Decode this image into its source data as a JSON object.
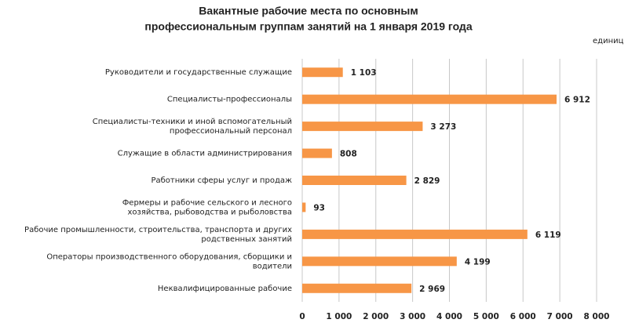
{
  "chart_data": {
    "type": "bar",
    "orientation": "horizontal",
    "title": [
      "Вакантные рабочие места по основным",
      "профессиональным группам занятий на 1 января 2019 года"
    ],
    "unit": "единиц",
    "categories": [
      [
        "Руководители и государственные служащие"
      ],
      [
        "Специалисты-профессионалы"
      ],
      [
        "Специалисты-техники и иной вспомогательный",
        "профессиональный персонал"
      ],
      [
        "Служащие в области администрирования"
      ],
      [
        "Работники сферы услуг и продаж"
      ],
      [
        "Фермеры и рабочие сельского и лесного",
        "хозяйства, рыбоводства и рыболовства"
      ],
      [
        "Рабочие промышленности, строительства, транспорта и других",
        "родственных занятий"
      ],
      [
        "Операторы производственного оборудования, сборщики и",
        "водители"
      ],
      [
        "Неквалифицированные рабочие"
      ]
    ],
    "values": [
      1103,
      6912,
      3273,
      808,
      2829,
      93,
      6119,
      4199,
      2969
    ],
    "value_labels": [
      "1 103",
      "6 912",
      "3 273",
      "808",
      "2 829",
      "93",
      "6 119",
      "4 199",
      "2 969"
    ],
    "color": "#f79646",
    "xlim": [
      0,
      8000
    ],
    "xticks": [
      0,
      {
        "value": 1000,
        "label": "1 000"
      },
      {
        "value": 2000,
        "label": "2 000"
      },
      {
        "value": 3000,
        "label": "3 000"
      },
      {
        "value": 4000,
        "label": "4 000"
      },
      {
        "value": 5000,
        "label": "5 000"
      },
      {
        "value": 6000,
        "label": "6 000"
      },
      {
        "value": 7000,
        "label": "7 000"
      },
      {
        "value": 8000,
        "label": "8 000"
      }
    ],
    "grid": true
  }
}
